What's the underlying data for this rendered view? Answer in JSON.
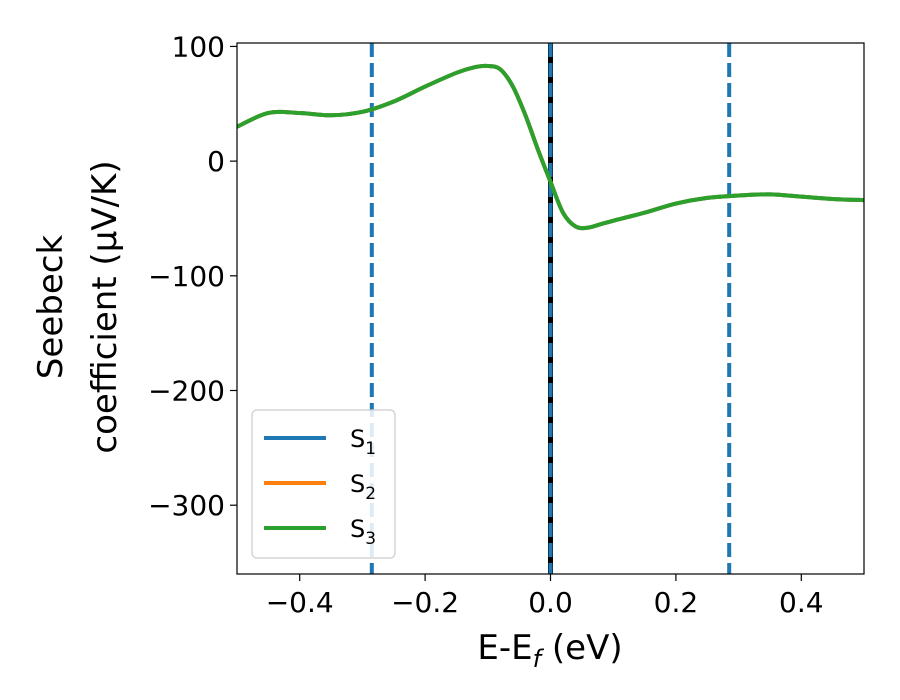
{
  "chart_data": {
    "type": "line",
    "title": "",
    "xlabel": {
      "base": "E-E",
      "sub": "f",
      "tail": " (eV)"
    },
    "ylabel": {
      "line1": "Seebeck",
      "line2": "coefficient  (μV/K)"
    },
    "xlim": [
      -0.5,
      0.5
    ],
    "ylim": [
      -360,
      103
    ],
    "xticks": [
      -0.4,
      -0.2,
      0.0,
      0.2,
      0.4
    ],
    "xtick_labels": [
      "−0.4",
      "−0.2",
      "0.0",
      "0.2",
      "0.4"
    ],
    "yticks": [
      100,
      0,
      -100,
      -200,
      -300
    ],
    "ytick_labels": [
      "100",
      "0",
      "−100",
      "−200",
      "−300"
    ],
    "grid": false,
    "legend_position": "lower-left",
    "series": [
      {
        "name": "S",
        "sub": "1",
        "color": "#1f77b4",
        "x": [
          -0.5,
          -0.45,
          -0.4,
          -0.35,
          -0.3,
          -0.25,
          -0.2,
          -0.15,
          -0.12,
          -0.1,
          -0.08,
          -0.06,
          -0.04,
          -0.02,
          0.0,
          0.02,
          0.04,
          0.06,
          0.08,
          0.1,
          0.15,
          0.2,
          0.25,
          0.3,
          0.35,
          0.4,
          0.45,
          0.5
        ],
        "y": [
          30,
          42,
          42,
          40,
          43,
          52,
          65,
          77,
          82,
          83,
          80,
          65,
          40,
          10,
          -18,
          -45,
          -57,
          -58,
          -55,
          -52,
          -45,
          -37,
          -32,
          -30,
          -29,
          -31,
          -33,
          -34
        ]
      },
      {
        "name": "S",
        "sub": "2",
        "color": "#ff7f0e",
        "x": [
          -0.5,
          -0.45,
          -0.4,
          -0.35,
          -0.3,
          -0.25,
          -0.2,
          -0.15,
          -0.12,
          -0.1,
          -0.08,
          -0.06,
          -0.04,
          -0.02,
          0.0,
          0.02,
          0.04,
          0.06,
          0.08,
          0.1,
          0.15,
          0.2,
          0.25,
          0.3,
          0.35,
          0.4,
          0.45,
          0.5
        ],
        "y": [
          30,
          42,
          42,
          40,
          43,
          52,
          65,
          77,
          82,
          83,
          80,
          65,
          40,
          10,
          -18,
          -45,
          -57,
          -58,
          -55,
          -52,
          -45,
          -37,
          -32,
          -30,
          -29,
          -31,
          -33,
          -34
        ]
      },
      {
        "name": "S",
        "sub": "3",
        "color": "#2ca02c",
        "x": [
          -0.5,
          -0.45,
          -0.4,
          -0.35,
          -0.3,
          -0.25,
          -0.2,
          -0.15,
          -0.12,
          -0.1,
          -0.08,
          -0.06,
          -0.04,
          -0.02,
          0.0,
          0.02,
          0.04,
          0.06,
          0.08,
          0.1,
          0.15,
          0.2,
          0.25,
          0.3,
          0.35,
          0.4,
          0.45,
          0.5
        ],
        "y": [
          30,
          42,
          42,
          40,
          43,
          52,
          65,
          77,
          82,
          83,
          80,
          65,
          40,
          10,
          -18,
          -45,
          -57,
          -58,
          -55,
          -52,
          -45,
          -37,
          -32,
          -30,
          -29,
          -31,
          -33,
          -34
        ]
      }
    ],
    "vlines": [
      {
        "x": 0.0,
        "color": "#000000",
        "style": "solid"
      },
      {
        "x": 0.0,
        "color": "#1f77b4",
        "style": "dashed"
      },
      {
        "x": -0.285,
        "color": "#1f77b4",
        "style": "dashed"
      },
      {
        "x": 0.285,
        "color": "#1f77b4",
        "style": "dashed"
      }
    ]
  }
}
